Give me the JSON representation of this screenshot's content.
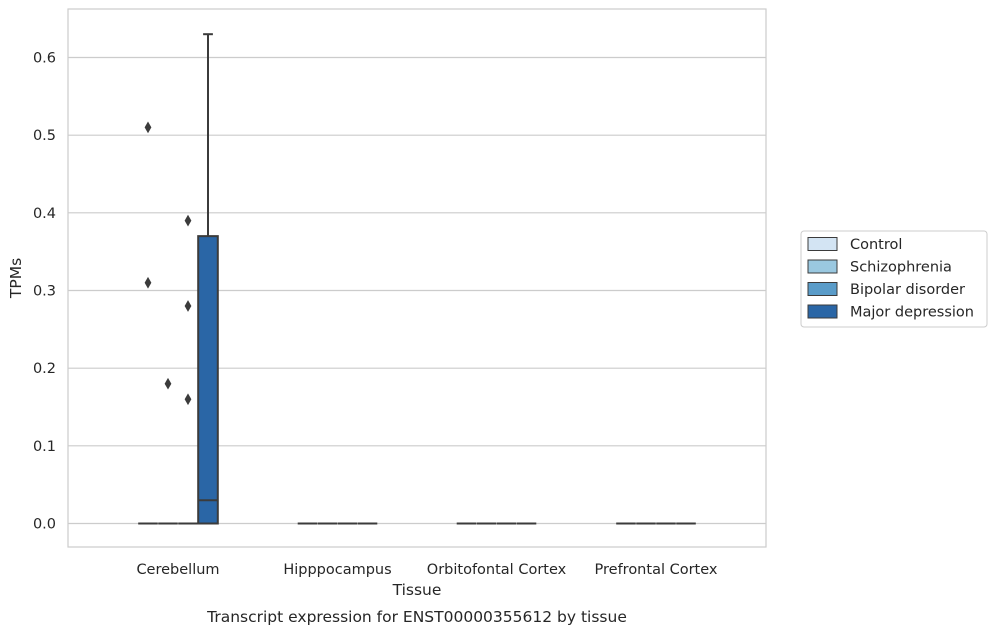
{
  "chart_data": {
    "type": "box",
    "title": "",
    "caption": "Transcript expression for ENST00000355612 by tissue",
    "xlabel": "Tissue",
    "ylabel": "TPMs",
    "ylim": [
      -0.031,
      0.662
    ],
    "yticks": [
      0.0,
      0.1,
      0.2,
      0.3,
      0.4,
      0.5,
      0.6
    ],
    "ytick_labels": [
      "0.0",
      "0.1",
      "0.2",
      "0.3",
      "0.4",
      "0.5",
      "0.6"
    ],
    "grid": "horizontal",
    "legend_position": "outside-right",
    "categories": [
      "Cerebellum",
      "Hipppocampus",
      "Orbitofontal Cortex",
      "Prefrontal Cortex"
    ],
    "series": [
      {
        "name": "Control",
        "color": "#d3e4f3",
        "boxes": [
          {
            "min": 0,
            "q1": 0,
            "median": 0,
            "q3": 0,
            "max": 0,
            "outliers": [
              0.51,
              0.31
            ]
          },
          {
            "min": 0,
            "q1": 0,
            "median": 0,
            "q3": 0,
            "max": 0,
            "outliers": []
          },
          {
            "min": 0,
            "q1": 0,
            "median": 0,
            "q3": 0,
            "max": 0,
            "outliers": []
          },
          {
            "min": 0,
            "q1": 0,
            "median": 0,
            "q3": 0,
            "max": 0,
            "outliers": []
          }
        ]
      },
      {
        "name": "Schizophrenia",
        "color": "#9ac8e0",
        "boxes": [
          {
            "min": 0,
            "q1": 0,
            "median": 0,
            "q3": 0,
            "max": 0,
            "outliers": [
              0.18
            ]
          },
          {
            "min": 0,
            "q1": 0,
            "median": 0,
            "q3": 0,
            "max": 0,
            "outliers": []
          },
          {
            "min": 0,
            "q1": 0,
            "median": 0,
            "q3": 0,
            "max": 0,
            "outliers": []
          },
          {
            "min": 0,
            "q1": 0,
            "median": 0,
            "q3": 0,
            "max": 0,
            "outliers": []
          }
        ]
      },
      {
        "name": "Bipolar disorder",
        "color": "#5a9cc9",
        "boxes": [
          {
            "min": 0,
            "q1": 0,
            "median": 0,
            "q3": 0,
            "max": 0,
            "outliers": [
              0.39,
              0.28,
              0.16
            ]
          },
          {
            "min": 0,
            "q1": 0,
            "median": 0,
            "q3": 0,
            "max": 0,
            "outliers": []
          },
          {
            "min": 0,
            "q1": 0,
            "median": 0,
            "q3": 0,
            "max": 0,
            "outliers": []
          },
          {
            "min": 0,
            "q1": 0,
            "median": 0,
            "q3": 0,
            "max": 0,
            "outliers": []
          }
        ]
      },
      {
        "name": "Major depression",
        "color": "#2a66a6",
        "boxes": [
          {
            "min": 0,
            "q1": 0,
            "median": 0.03,
            "q3": 0.37,
            "max": 0.63,
            "outliers": []
          },
          {
            "min": 0,
            "q1": 0,
            "median": 0,
            "q3": 0,
            "max": 0,
            "outliers": []
          },
          {
            "min": 0,
            "q1": 0,
            "median": 0,
            "q3": 0,
            "max": 0,
            "outliers": []
          },
          {
            "min": 0,
            "q1": 0,
            "median": 0,
            "q3": 0,
            "max": 0,
            "outliers": []
          }
        ]
      }
    ],
    "style": {
      "grid_color": "#cccccc",
      "frame_color": "#cccccc",
      "box_edge_color": "#3b3b3b",
      "outlier_color": "#3b3b3b"
    }
  }
}
